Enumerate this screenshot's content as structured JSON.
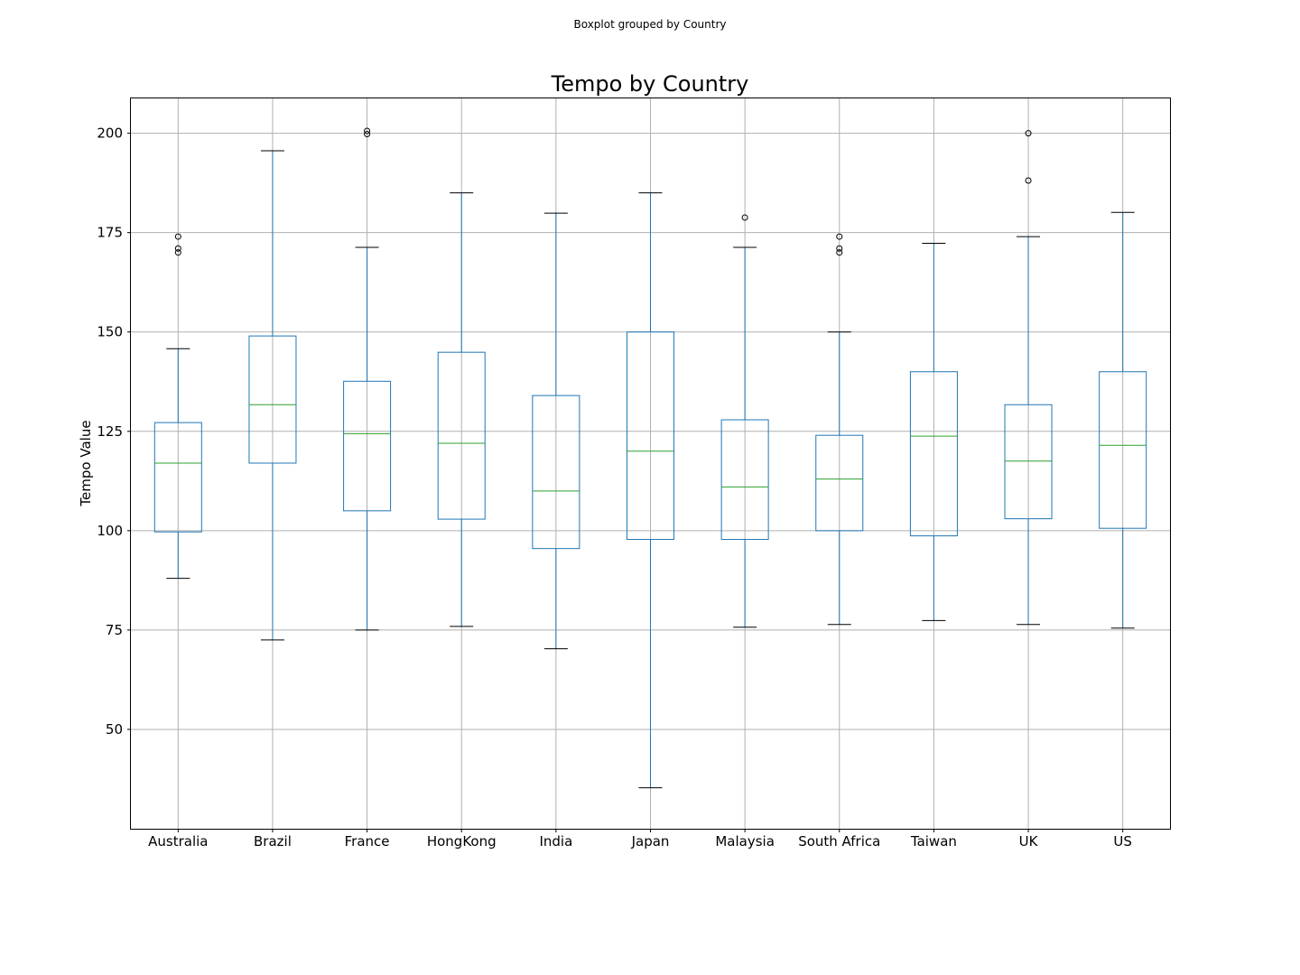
{
  "suptitle": "Boxplot grouped by Country",
  "chart_data": {
    "type": "boxplot",
    "title": "Tempo by Country",
    "xlabel": "",
    "ylabel": "Tempo Value",
    "ylim": [
      25,
      209
    ],
    "yticks": [
      50,
      75,
      100,
      125,
      150,
      175,
      200
    ],
    "grid": true,
    "colors": {
      "box": "#1f77b4",
      "median": "#2ca02c",
      "cap": "#000000",
      "grid": "#b0b0b0",
      "outlier": "#000000"
    },
    "categories": [
      "Australia",
      "Brazil",
      "France",
      "HongKong",
      "India",
      "Japan",
      "Malaysia",
      "South Africa",
      "Taiwan",
      "UK",
      "US"
    ],
    "boxes": [
      {
        "category": "Australia",
        "whisker_low": 88,
        "q1": 99.7,
        "median": 117,
        "q3": 127.2,
        "whisker_high": 145.8,
        "outliers": [
          170,
          171,
          174
        ]
      },
      {
        "category": "Brazil",
        "whisker_low": 72.5,
        "q1": 117,
        "median": 131.7,
        "q3": 149,
        "whisker_high": 195.6,
        "outliers": []
      },
      {
        "category": "France",
        "whisker_low": 75,
        "q1": 105,
        "median": 124.4,
        "q3": 137.6,
        "whisker_high": 171.3,
        "outliers": [
          199.8,
          200.6
        ]
      },
      {
        "category": "HongKong",
        "whisker_low": 75.9,
        "q1": 102.9,
        "median": 122,
        "q3": 144.9,
        "whisker_high": 185,
        "outliers": []
      },
      {
        "category": "India",
        "whisker_low": 70.3,
        "q1": 95.5,
        "median": 110,
        "q3": 134,
        "whisker_high": 179.9,
        "outliers": []
      },
      {
        "category": "Japan",
        "whisker_low": 35.3,
        "q1": 97.8,
        "median": 120,
        "q3": 150,
        "whisker_high": 185,
        "outliers": []
      },
      {
        "category": "Malaysia",
        "whisker_low": 75.7,
        "q1": 97.8,
        "median": 111,
        "q3": 127.9,
        "whisker_high": 171.3,
        "outliers": [
          178.8
        ]
      },
      {
        "category": "South Africa",
        "whisker_low": 76.4,
        "q1": 100,
        "median": 113,
        "q3": 124,
        "whisker_high": 150,
        "outliers": [
          170,
          171,
          174
        ]
      },
      {
        "category": "Taiwan",
        "whisker_low": 77.4,
        "q1": 98.7,
        "median": 123.8,
        "q3": 140,
        "whisker_high": 172.3,
        "outliers": []
      },
      {
        "category": "UK",
        "whisker_low": 76.4,
        "q1": 103,
        "median": 117.5,
        "q3": 131.7,
        "whisker_high": 174,
        "outliers": [
          188.1,
          200
        ]
      },
      {
        "category": "US",
        "whisker_low": 75.5,
        "q1": 100.6,
        "median": 121.5,
        "q3": 140,
        "whisker_high": 180.1,
        "outliers": []
      }
    ]
  }
}
